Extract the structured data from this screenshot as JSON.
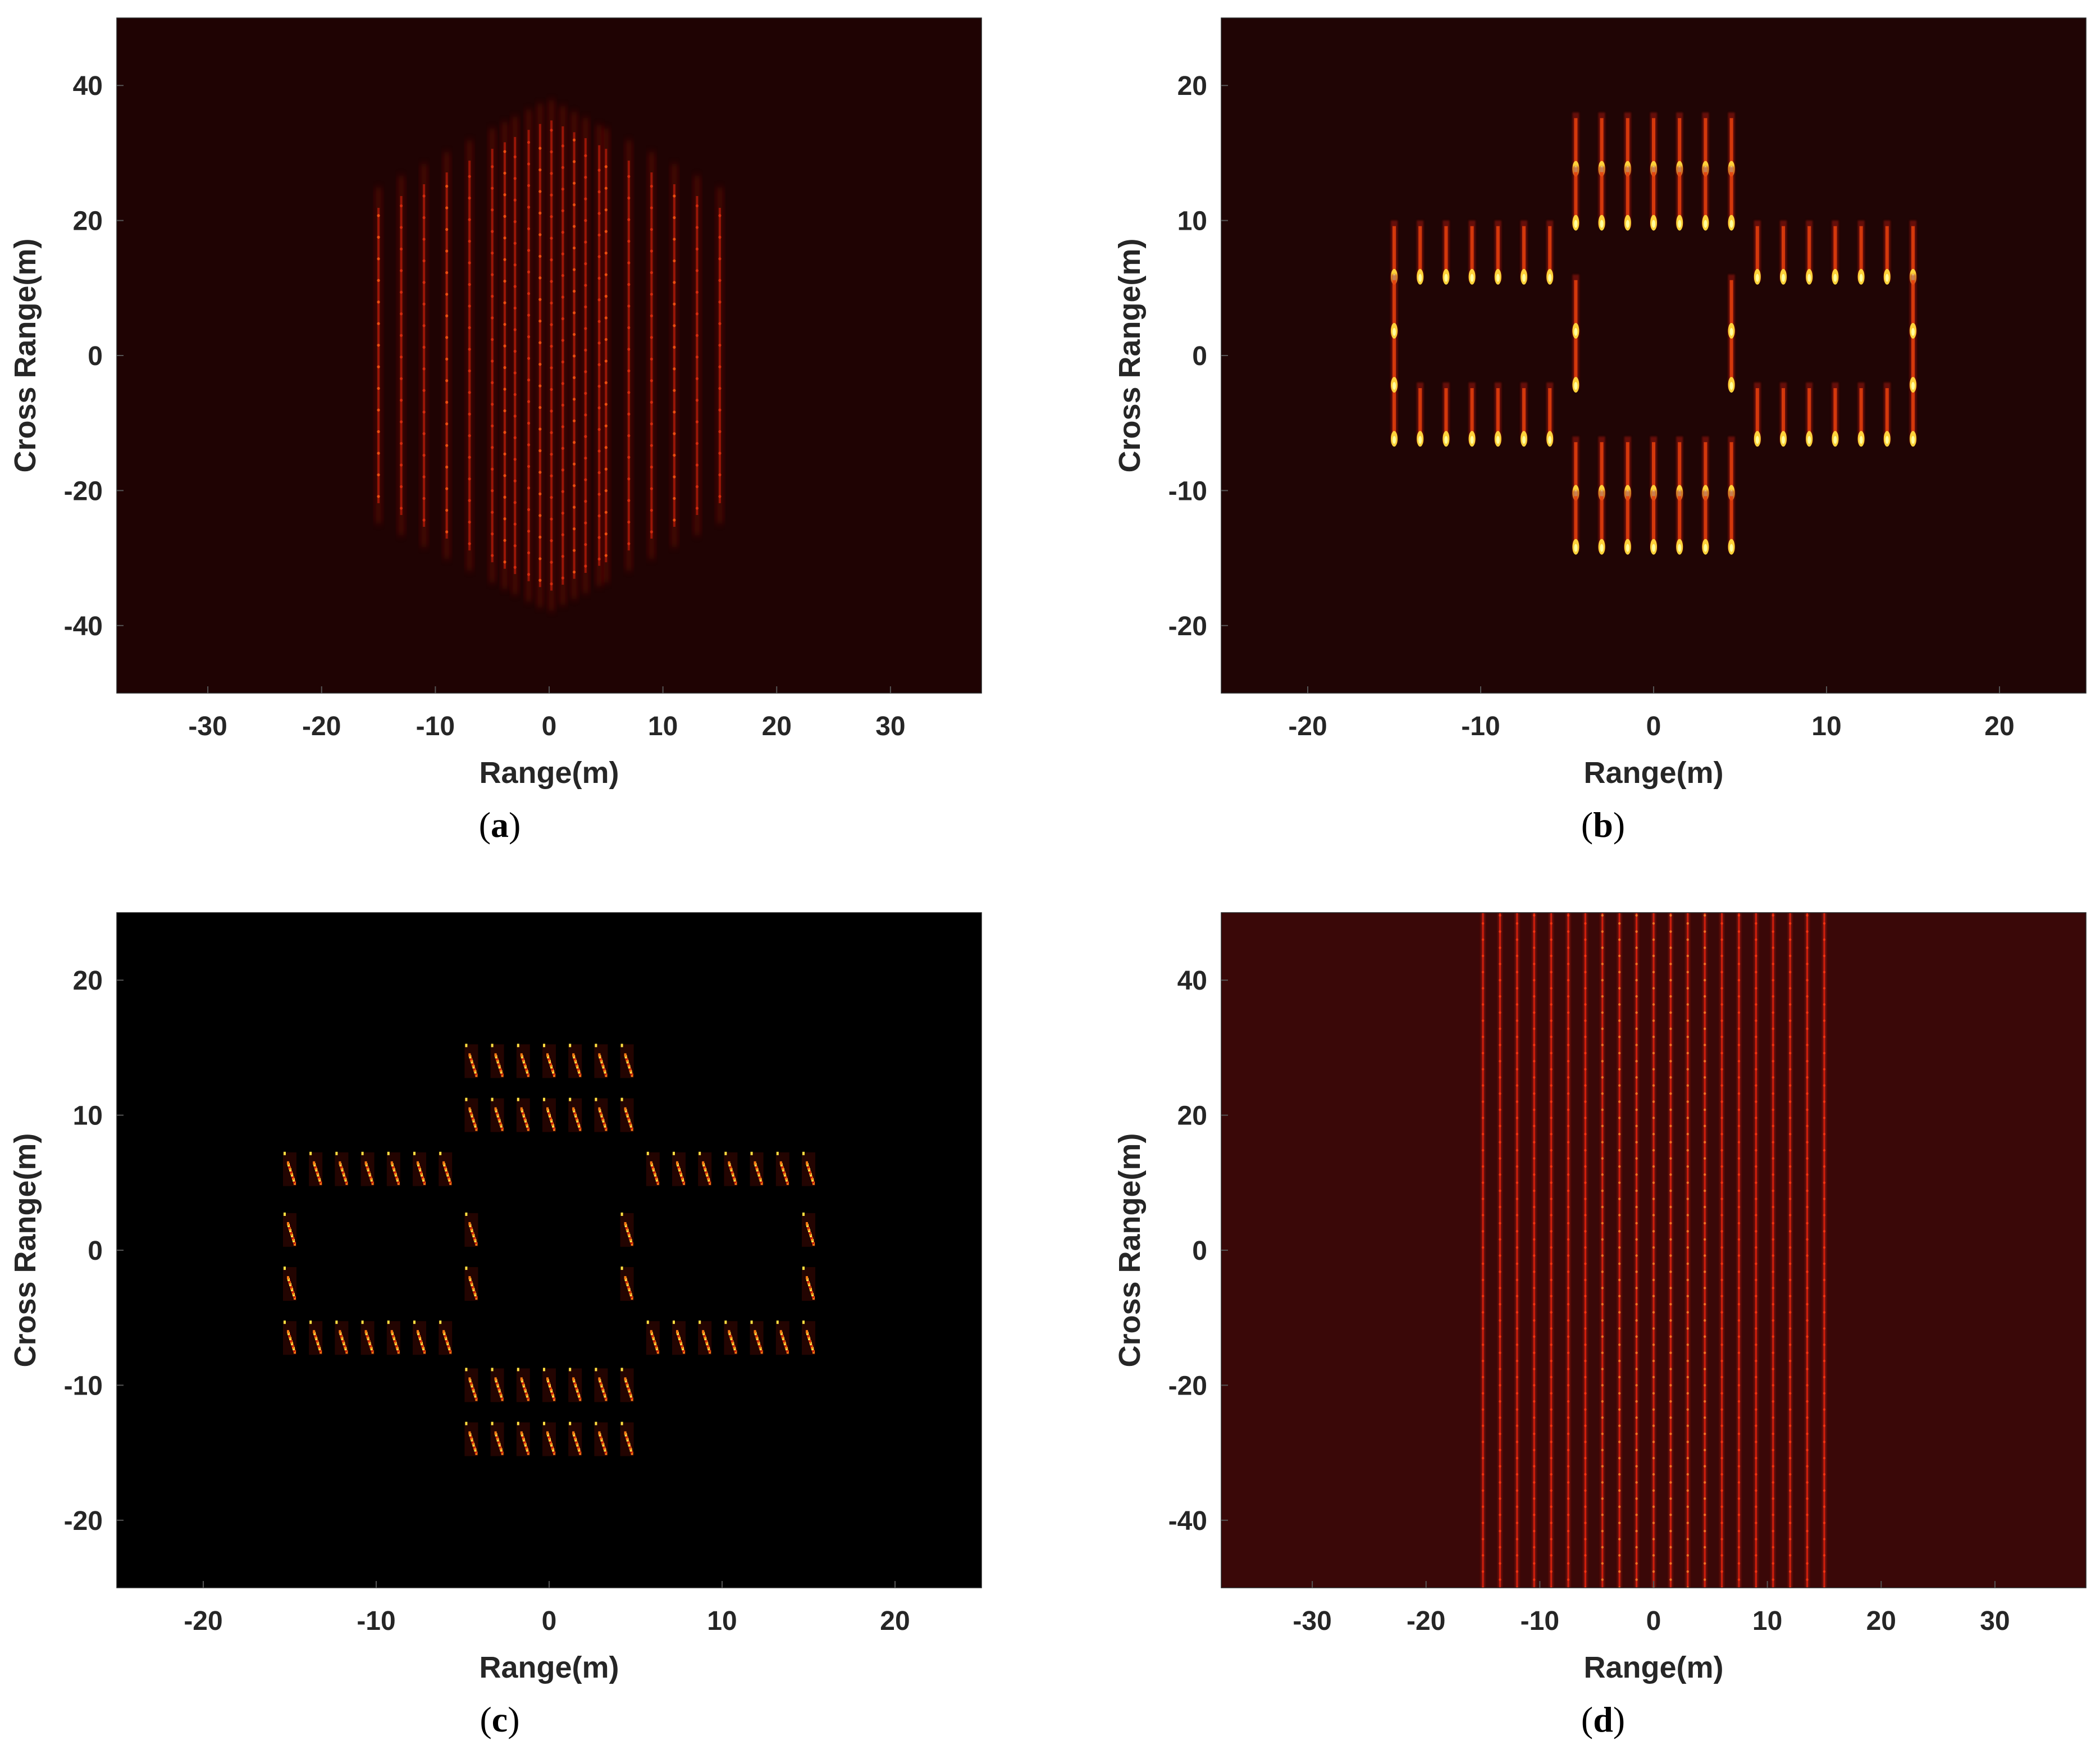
{
  "chart_data": [
    {
      "type": "heatmap",
      "panel": "a",
      "caption_letter": "a",
      "xlabel": "Range(m)",
      "ylabel": "Cross Range(m)",
      "xlim": [
        -38,
        38
      ],
      "ylim": [
        -50,
        50
      ],
      "xticks": [
        -30,
        -20,
        -10,
        0,
        10,
        20,
        30
      ],
      "yticks": [
        40,
        20,
        0,
        -20,
        -40
      ],
      "colormap": "hot",
      "background": "#1f0303",
      "image": "defocused vertical streaks spanning range -15 to 15 m",
      "streak_ranges": [
        -15,
        -13,
        -11,
        -9,
        -7,
        -5,
        -3.9,
        -3,
        -1.8,
        -0.8,
        0.2,
        1.2,
        2.2,
        3.2,
        4.4,
        5,
        7,
        9,
        11,
        13,
        15
      ]
    },
    {
      "type": "heatmap",
      "panel": "b",
      "caption_letter": "b",
      "xlabel": "Range(m)",
      "ylabel": "Cross Range(m)",
      "xlim": [
        -25,
        25
      ],
      "ylim": [
        -25,
        25
      ],
      "xticks": [
        -20,
        -10,
        0,
        10,
        20
      ],
      "yticks": [
        20,
        10,
        0,
        -10,
        -20
      ],
      "colormap": "hot",
      "background": "#200505",
      "image": "cross-shaped point target array with vertical tails",
      "arm_columns": [
        -15,
        -13.5,
        -12,
        -10.5,
        -9,
        -7.5,
        -6,
        6,
        7.5,
        9,
        10.5,
        12,
        13.5,
        15
      ],
      "arm_rows": [
        5.5,
        -6.5
      ],
      "center_columns": [
        -4.5,
        -3,
        -1.5,
        0,
        1.5,
        3,
        4.5
      ],
      "center_rows": [
        13.5,
        9.5,
        -10.5,
        -14.5
      ]
    },
    {
      "type": "heatmap",
      "panel": "c",
      "caption_letter": "c",
      "xlabel": "Range(m)",
      "ylabel": "Cross Range(m)",
      "xlim": [
        -25,
        25
      ],
      "ylim": [
        -25,
        25
      ],
      "xticks": [
        -20,
        -10,
        0,
        10,
        20
      ],
      "yticks": [
        20,
        10,
        0,
        -10,
        -20
      ],
      "colormap": "hot",
      "background": "#000000",
      "image": "sparse reconstruction of cross-shaped point target array",
      "arm_columns": [
        -15,
        -13.5,
        -12,
        -10.5,
        -9,
        -7.5,
        -6,
        6,
        7.5,
        9,
        10.5,
        12,
        13.5,
        15
      ],
      "arm_rows": [
        6,
        -6.5
      ],
      "center_columns": [
        -4.5,
        -3,
        -1.5,
        0,
        1.5,
        3,
        4.5
      ],
      "center_rows": [
        14,
        10,
        -10,
        -14
      ]
    },
    {
      "type": "heatmap",
      "panel": "d",
      "caption_letter": "d",
      "xlabel": "Range(m)",
      "ylabel": "Cross Range(m)",
      "xlim": [
        -38,
        38
      ],
      "ylim": [
        -50,
        50
      ],
      "xticks": [
        -30,
        -20,
        -10,
        0,
        10,
        20,
        30
      ],
      "yticks": [
        40,
        20,
        0,
        -20,
        -40
      ],
      "colormap": "hot",
      "background": "#3a0808",
      "image": "vertical lines spanning full cross range between range -15 and 15 m",
      "line_ranges": [
        -15,
        -13.5,
        -12,
        -10.5,
        -9,
        -7.5,
        -6,
        -4.5,
        -3,
        -1.5,
        0,
        1.5,
        3,
        4.5,
        6,
        7.5,
        9,
        10.5,
        12,
        13.5,
        15
      ]
    }
  ]
}
